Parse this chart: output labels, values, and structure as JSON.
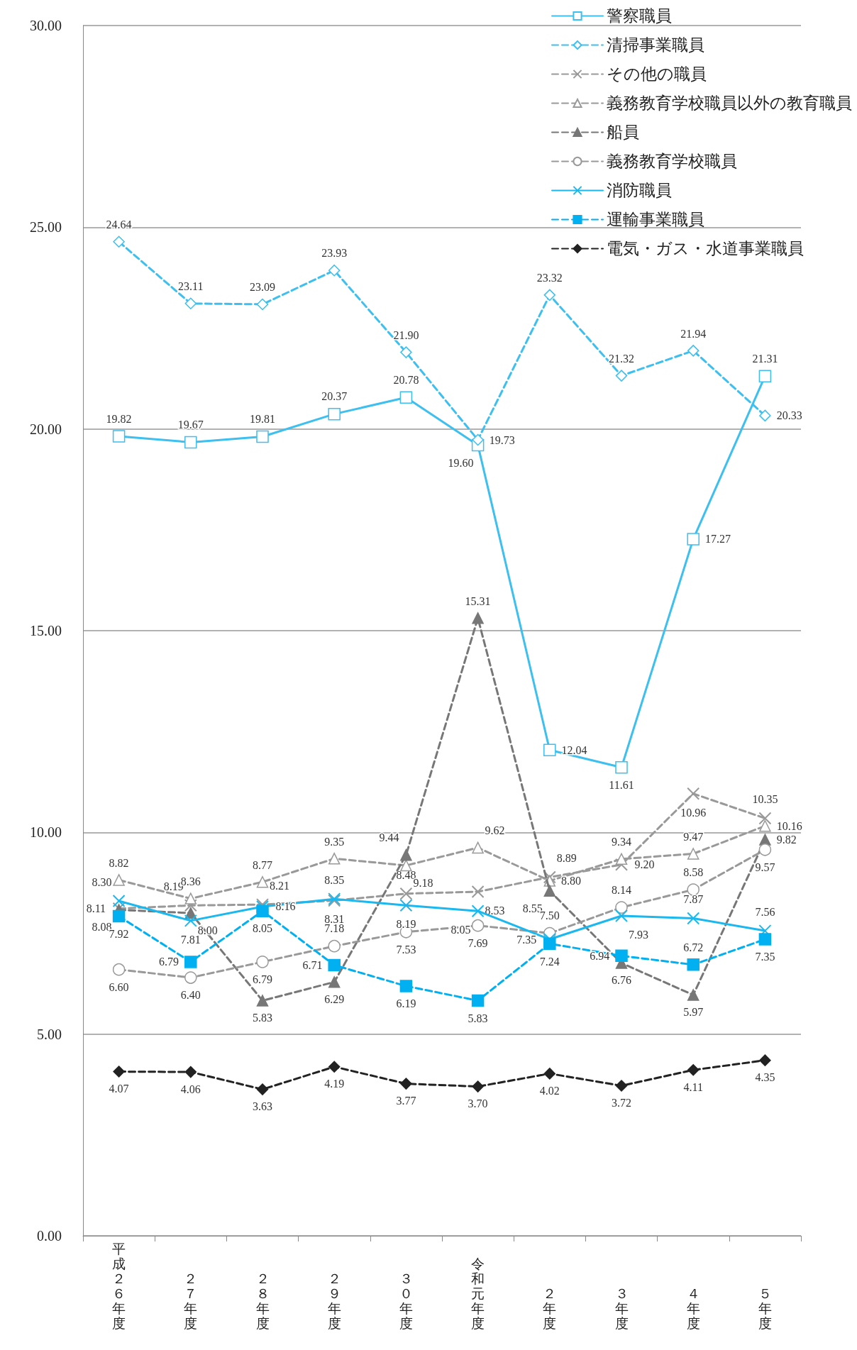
{
  "chart_data": {
    "type": "line",
    "categories": [
      "平成２６年度",
      "２７年度",
      "２８年度",
      "２９年度",
      "３０年度",
      "令和元年度",
      "２年度",
      "３年度",
      "４年度",
      "５年度"
    ],
    "series": [
      {
        "name": "警察職員",
        "color": "#3dbfef",
        "marker": "square",
        "line_style": "solid",
        "values": [
          19.82,
          19.67,
          19.81,
          20.37,
          20.78,
          19.6,
          12.04,
          11.61,
          17.27,
          21.31
        ],
        "value_labels": [
          "19.82",
          "19.67",
          "19.81",
          "20.37",
          "20.78",
          "19.60",
          "12.04",
          "11.61",
          "17.27",
          "21.31"
        ]
      },
      {
        "name": "清掃事業職員",
        "color": "#3dbfef",
        "marker": "diamond",
        "line_style": "dashed",
        "values": [
          24.64,
          23.11,
          23.09,
          23.93,
          21.9,
          19.73,
          23.32,
          21.32,
          21.94,
          20.33
        ],
        "value_labels": [
          "24.64",
          "23.11",
          "23.09",
          "23.93",
          "21.90",
          "19.73",
          "23.32",
          "21.32",
          "21.94",
          "20.33"
        ]
      },
      {
        "name": "その他の職員",
        "color": "#999999",
        "marker": "cross",
        "line_style": "dashed",
        "values": [
          8.11,
          8.19,
          8.21,
          8.31,
          8.48,
          8.53,
          8.89,
          9.2,
          10.96,
          10.35
        ],
        "value_labels": [
          "8.11",
          "8.19",
          "8.21",
          "8.31",
          "8.48",
          "8.53",
          "8.89",
          "9.20",
          "10.96",
          "10.35"
        ]
      },
      {
        "name": "義務教育学校職員以外の教育職員",
        "color": "#999999",
        "marker": "triangle",
        "line_style": "dashed",
        "values": [
          8.82,
          8.36,
          8.77,
          9.35,
          9.18,
          9.62,
          8.8,
          9.34,
          9.47,
          10.16
        ],
        "value_labels": [
          "8.82",
          "8.36",
          "8.77",
          "9.35",
          "9.18",
          "9.62",
          "8.80",
          "9.34",
          "9.47",
          "10.16"
        ]
      },
      {
        "name": "船員",
        "color": "#777777",
        "marker": "triangle",
        "line_style": "dashed",
        "values": [
          8.08,
          8.0,
          5.83,
          6.29,
          9.44,
          15.31,
          8.55,
          6.76,
          5.97,
          9.82
        ],
        "value_labels": [
          "8.08",
          "8.00",
          "5.83",
          "6.29",
          "9.44",
          "15.31",
          "8.55",
          "6.76",
          "5.97",
          "9.82"
        ]
      },
      {
        "name": "義務教育学校職員",
        "color": "#999999",
        "marker": "circle",
        "line_style": "dashed",
        "values": [
          6.6,
          6.4,
          6.79,
          7.18,
          7.53,
          7.69,
          7.5,
          8.14,
          8.58,
          9.57
        ],
        "value_labels": [
          "6.60",
          "6.40",
          "6.79",
          "7.18",
          "7.53",
          "7.69",
          "7.50",
          "8.14",
          "8.58",
          "9.57"
        ]
      },
      {
        "name": "消防職員",
        "color": "#1ab8ee",
        "marker": "cross",
        "line_style": "solid",
        "values": [
          8.3,
          7.81,
          8.16,
          8.35,
          8.19,
          8.05,
          7.35,
          7.93,
          7.87,
          7.56
        ],
        "value_labels": [
          "8.30",
          "7.81",
          "8.16",
          "8.35",
          "8.19",
          "8.05",
          "7.35",
          "7.93",
          "7.87",
          "7.56"
        ]
      },
      {
        "name": "運輸事業職員",
        "color": "#00b0f0",
        "marker": "square",
        "line_style": "dashed",
        "values": [
          7.92,
          6.79,
          8.05,
          6.71,
          6.19,
          5.83,
          7.24,
          6.94,
          6.72,
          7.35
        ],
        "value_labels": [
          "7.92",
          "6.79",
          "8.05",
          "6.71",
          "6.19",
          "5.83",
          "7.24",
          "6.94",
          "6.72",
          "7.35"
        ]
      },
      {
        "name": "電気・ガス・水道事業職員",
        "color": "#222222",
        "marker": "diamond",
        "line_style": "dashed",
        "values": [
          4.07,
          4.06,
          3.63,
          4.19,
          3.77,
          3.7,
          4.02,
          3.72,
          4.11,
          4.35
        ],
        "value_labels": [
          "4.07",
          "4.06",
          "3.63",
          "4.19",
          "3.77",
          "3.70",
          "4.02",
          "3.72",
          "4.11",
          "4.35"
        ]
      }
    ],
    "ylim": [
      0,
      30
    ],
    "yticks": [
      {
        "value": 0,
        "label": "0.00"
      },
      {
        "value": 5,
        "label": "5.00"
      },
      {
        "value": 10,
        "label": "10.00"
      },
      {
        "value": 15,
        "label": "15.00"
      },
      {
        "value": 20,
        "label": "20.00"
      },
      {
        "value": 25,
        "label": "25.00"
      },
      {
        "value": 30,
        "label": "30.00"
      }
    ],
    "grid": "y",
    "legend": "top right"
  }
}
